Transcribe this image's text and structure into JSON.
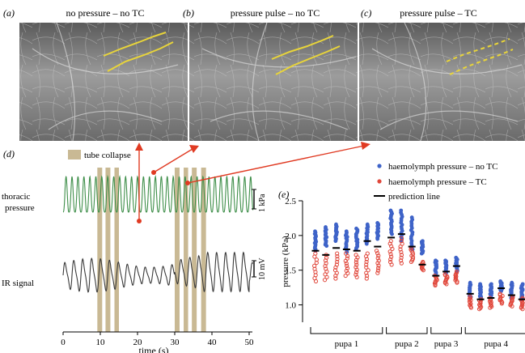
{
  "panels": {
    "a": {
      "letter": "(a)",
      "title": "no pressure – no TC"
    },
    "b": {
      "letter": "(b)",
      "title": "pressure pulse – no TC"
    },
    "c": {
      "letter": "(c)",
      "title": "pressure pulse – TC"
    },
    "d": {
      "letter": "(d)"
    },
    "e": {
      "letter": "(e)"
    }
  },
  "panel_d": {
    "legend_tube_collapse": "tube collapse",
    "thoracic_label_line1": "thoracic",
    "thoracic_label_line2": "pressure",
    "ir_label": "IR signal",
    "scale_pressure": "1 kPa",
    "scale_ir": "10 mV",
    "xlabel": "time (s)",
    "xticks": [
      "0",
      "10",
      "20",
      "30",
      "40",
      "50"
    ],
    "colors": {
      "pressure": "#3f8f4a",
      "ir": "#3a3a3a",
      "collapse": "#c9b994",
      "arrow": "#e03a22"
    }
  },
  "chart_data": {
    "type": "scatter",
    "ylabel": "pressure (kPa)",
    "ylim": [
      0.75,
      2.5
    ],
    "yticks": [
      "1.0",
      "1.5",
      "2.0",
      "2.5"
    ],
    "legend": [
      {
        "label": "haemolymph pressure – no TC",
        "color": "#3e63c8"
      },
      {
        "label": "haemolymph pressure – TC",
        "color": "#e0463a"
      },
      {
        "label": "prediction line",
        "color": "#000000"
      }
    ],
    "groups": [
      {
        "label": "pupa 1",
        "columns": [
          {
            "no_tc": [
              1.78,
              2.06
            ],
            "tc": [
              1.34,
              1.74
            ],
            "prediction": 1.78
          },
          {
            "no_tc": [
              1.85,
              2.12
            ],
            "tc": [
              1.36,
              1.72
            ],
            "prediction": 1.72
          },
          {
            "no_tc": [
              1.92,
              2.16
            ],
            "tc": [
              1.38,
              1.74
            ],
            "prediction": 1.82
          },
          {
            "no_tc": [
              1.76,
              2.06
            ],
            "tc": [
              1.42,
              1.74
            ],
            "prediction": 1.8
          },
          {
            "no_tc": [
              1.8,
              2.1
            ],
            "tc": [
              1.4,
              1.72
            ],
            "prediction": 1.78
          },
          {
            "no_tc": [
              1.88,
              2.16
            ],
            "tc": [
              1.38,
              1.74
            ],
            "prediction": 1.92
          },
          {
            "no_tc": [
              1.95,
              2.18
            ],
            "tc": [
              1.46,
              1.78
            ],
            "prediction": 1.84
          }
        ]
      },
      {
        "label": "pupa 2",
        "columns": [
          {
            "no_tc": [
              2.02,
              2.36
            ],
            "tc": [
              1.58,
              1.92
            ],
            "prediction": 1.97
          },
          {
            "no_tc": [
              1.92,
              2.36
            ],
            "tc": [
              1.6,
              1.96
            ],
            "prediction": 2.02
          },
          {
            "no_tc": [
              1.8,
              2.26
            ],
            "tc": [
              1.62,
              1.82
            ],
            "prediction": 1.84
          },
          {
            "no_tc": [
              1.74,
              1.92
            ],
            "tc": [
              1.5,
              1.62
            ],
            "prediction": 1.58
          }
        ]
      },
      {
        "label": "pupa 3",
        "columns": [
          {
            "no_tc": [
              1.44,
              1.64
            ],
            "tc": [
              1.28,
              1.42
            ],
            "prediction": 1.42
          },
          {
            "no_tc": [
              1.46,
              1.64
            ],
            "tc": [
              1.3,
              1.44
            ],
            "prediction": 1.48
          },
          {
            "no_tc": [
              1.48,
              1.68
            ],
            "tc": [
              1.32,
              1.48
            ],
            "prediction": 1.56
          }
        ]
      },
      {
        "label": "pupa 4",
        "columns": [
          {
            "no_tc": [
              1.1,
              1.32
            ],
            "tc": [
              0.96,
              1.12
            ],
            "prediction": 1.16
          },
          {
            "no_tc": [
              1.1,
              1.3
            ],
            "tc": [
              0.94,
              1.08
            ],
            "prediction": 1.08
          },
          {
            "no_tc": [
              1.12,
              1.3
            ],
            "tc": [
              0.96,
              1.1
            ],
            "prediction": 1.1
          },
          {
            "no_tc": [
              1.2,
              1.34
            ],
            "tc": [
              1.02,
              1.16
            ],
            "prediction": 1.24
          },
          {
            "no_tc": [
              1.1,
              1.32
            ],
            "tc": [
              0.98,
              1.12
            ],
            "prediction": 1.14
          },
          {
            "no_tc": [
              1.08,
              1.3
            ],
            "tc": [
              0.94,
              1.1
            ],
            "prediction": 1.08
          }
        ]
      }
    ]
  }
}
